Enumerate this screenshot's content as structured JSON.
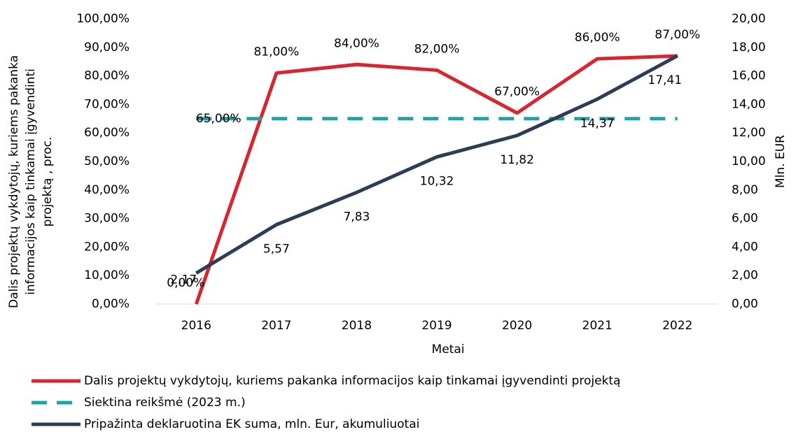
{
  "chart_data": {
    "type": "line",
    "categories": [
      "2016",
      "2017",
      "2018",
      "2019",
      "2020",
      "2021",
      "2022"
    ],
    "xlabel": "Metai",
    "ylabel": [
      "Dalis projektų vykdytojų, kuriems pakanka",
      "informacijos kaip tinkamai įgyvendinti",
      "projektą , proc."
    ],
    "y2label": "Mln. EUR",
    "ylim": [
      0,
      100
    ],
    "yticks": [
      {
        "value": 0,
        "label": "0,00%"
      },
      {
        "value": 10,
        "label": "10,00%"
      },
      {
        "value": 20,
        "label": "20,00%"
      },
      {
        "value": 30,
        "label": "30,00%"
      },
      {
        "value": 40,
        "label": "40,00%"
      },
      {
        "value": 50,
        "label": "50,00%"
      },
      {
        "value": 60,
        "label": "60,00%"
      },
      {
        "value": 70,
        "label": "70,00%"
      },
      {
        "value": 80,
        "label": "80,00%"
      },
      {
        "value": 90,
        "label": "90,00%"
      },
      {
        "value": 100,
        "label": "100,00%"
      }
    ],
    "y2lim": [
      0,
      20
    ],
    "y2ticks": [
      {
        "value": 0,
        "label": "0,00"
      },
      {
        "value": 2,
        "label": "2,00"
      },
      {
        "value": 4,
        "label": "4,00"
      },
      {
        "value": 6,
        "label": "6,00"
      },
      {
        "value": 8,
        "label": "8,00"
      },
      {
        "value": 10,
        "label": "10,00"
      },
      {
        "value": 12,
        "label": "12,00"
      },
      {
        "value": 14,
        "label": "14,00"
      },
      {
        "value": 16,
        "label": "16,00"
      },
      {
        "value": 18,
        "label": "18,00"
      },
      {
        "value": 20,
        "label": "20,00"
      }
    ],
    "legend": "bottom",
    "series": [
      {
        "name": "Dalis projektų vykdytojų, kuriems pakanka informacijos kaip tinkamai įgyvendinti projektą",
        "color": "#d7262f",
        "values": [
          0,
          81,
          84,
          82,
          67,
          86,
          87
        ],
        "value_labels": [
          "0,00%",
          "81,00%",
          "84,00%",
          "82,00%",
          "67,00%",
          "86,00%",
          "87,00%"
        ]
      },
      {
        "name": "Siektina reikšmė (2023 m.)",
        "color": "#1aa6a8",
        "dashed": true,
        "values": [
          65,
          65,
          65,
          65,
          65,
          65,
          65
        ],
        "value_labels": [
          "65,00%",
          null,
          null,
          null,
          null,
          null,
          null
        ]
      },
      {
        "name": "Pripažinta deklaruotina EK suma, mln. Eur, akumuliuotai",
        "color": "#2d3d55",
        "axis": "y2",
        "values": [
          2.17,
          5.57,
          7.83,
          10.32,
          11.82,
          14.37,
          17.41
        ],
        "value_labels": [
          "2,17",
          "5,57",
          "7,83",
          "10,32",
          "11,82",
          "14,37",
          "17,41"
        ]
      }
    ]
  }
}
